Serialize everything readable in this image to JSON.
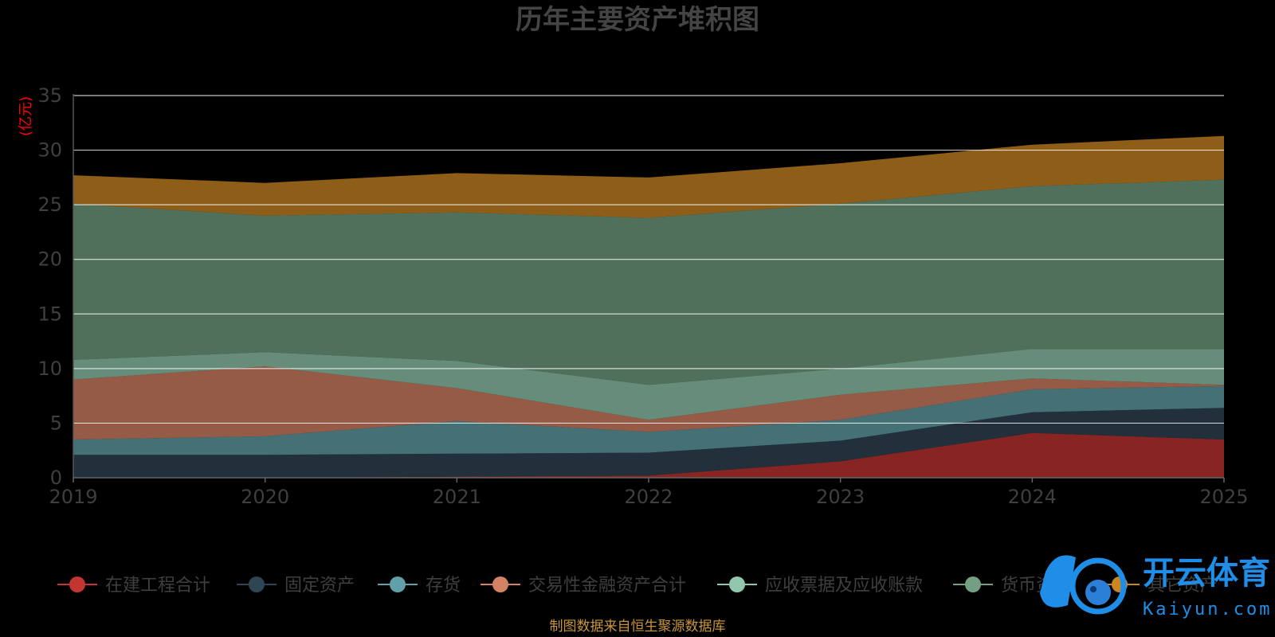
{
  "chart_data": {
    "type": "area",
    "stacked": true,
    "title": "历年主要资产堆积图",
    "ylabel": "(亿元)",
    "ylim": [
      0,
      35
    ],
    "yticks": [
      0,
      5,
      10,
      15,
      20,
      25,
      30,
      35
    ],
    "grid": true,
    "legend_position": "bottom",
    "x": [
      "2019",
      "2020",
      "2021",
      "2022",
      "2023",
      "2024",
      "2025"
    ],
    "series": [
      {
        "name": "在建工程合计",
        "color": "#c23531",
        "values": [
          0.0,
          0.0,
          0.1,
          0.2,
          1.5,
          4.1,
          3.5
        ]
      },
      {
        "name": "固定资产",
        "color": "#2f4554",
        "values": [
          2.1,
          2.1,
          2.1,
          2.1,
          1.9,
          1.9,
          2.9
        ]
      },
      {
        "name": "存货",
        "color": "#61a0a8",
        "values": [
          1.4,
          1.7,
          3.0,
          1.9,
          1.9,
          2.1,
          2.0
        ]
      },
      {
        "name": "交易性金融资产合计",
        "color": "#d48265",
        "values": [
          5.5,
          6.4,
          3.0,
          1.1,
          2.3,
          1.0,
          0.1
        ]
      },
      {
        "name": "应收票据及应收账款",
        "color": "#91c7ae",
        "values": [
          1.8,
          1.3,
          2.5,
          3.2,
          2.4,
          2.7,
          3.3
        ]
      },
      {
        "name": "货币资金",
        "color": "#749f83",
        "values": [
          14.3,
          12.5,
          13.6,
          15.3,
          15.1,
          14.9,
          15.5
        ]
      },
      {
        "name": "其它资产",
        "color": "#ca8622",
        "values": [
          2.6,
          3.0,
          3.6,
          3.7,
          3.7,
          3.8,
          4.0
        ]
      }
    ]
  },
  "legend_visible": [
    "在建工程合计",
    "固定资产",
    "存货",
    "交易性金融资产合计",
    "应收票据及应收账款",
    "货币资",
    "其它资产"
  ],
  "source_note": "制图数据来自恒生聚源数据库",
  "watermark": {
    "cn": "开云体育",
    "en": "Kaiyun.com"
  }
}
